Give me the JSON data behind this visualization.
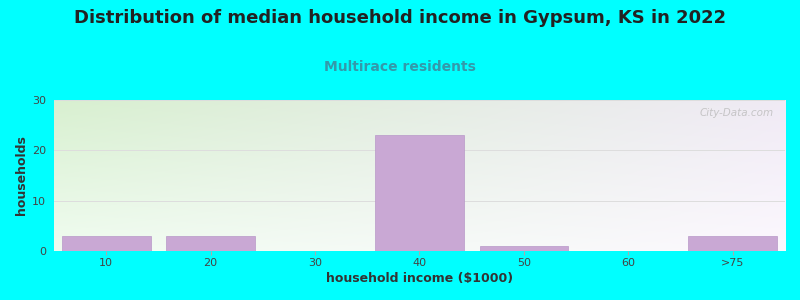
{
  "title": "Distribution of median household income in Gypsum, KS in 2022",
  "subtitle": "Multirace residents",
  "xlabel": "household income ($1000)",
  "ylabel": "households",
  "background_color": "#00FFFF",
  "plot_bg_color_topleft": "#d8f0d0",
  "plot_bg_color_topright": "#f0eaf5",
  "plot_bg_color_bottomleft": "#e8f8e0",
  "plot_bg_color_bottomright": "#f8f4fc",
  "bar_color": "#c9a8d4",
  "bar_edge_color": "#b898c8",
  "categories": [
    "10",
    "20",
    "30",
    "40",
    "50",
    "60",
    ">75"
  ],
  "values": [
    3,
    3,
    0,
    23,
    1,
    0,
    3
  ],
  "bar_width": 0.85,
  "ylim": [
    0,
    30
  ],
  "yticks": [
    0,
    10,
    20,
    30
  ],
  "title_fontsize": 13,
  "subtitle_fontsize": 10,
  "subtitle_color": "#3399aa",
  "axis_label_fontsize": 9,
  "tick_fontsize": 8,
  "watermark": "City-Data.com",
  "title_color": "#222222",
  "grid_color": "#dddddd"
}
